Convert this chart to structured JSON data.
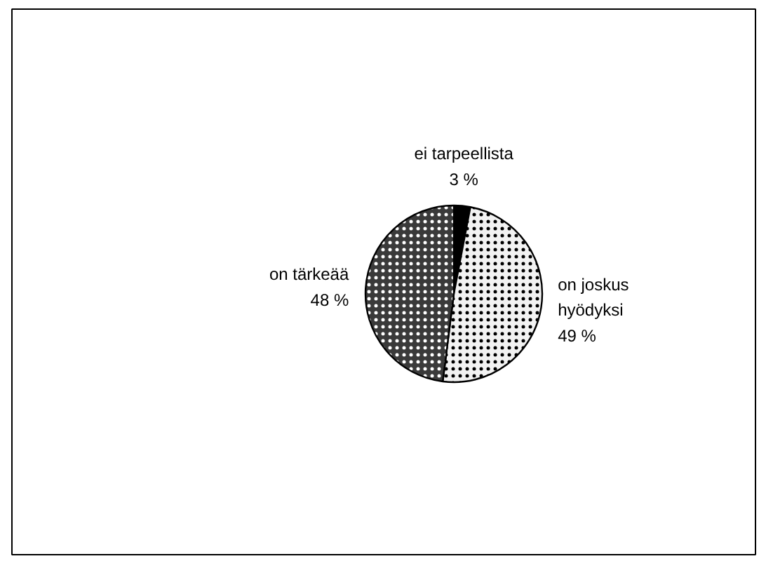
{
  "chart_data": {
    "type": "pie",
    "categories": [
      "ei tarpeellista",
      "on joskus hyödyksi",
      "on tärkeää"
    ],
    "values": [
      3,
      49,
      48
    ],
    "value_labels": [
      "3 %",
      "49 %",
      "48 %"
    ],
    "colors": [
      "#000000",
      "#f2f2f2",
      "#3a3a3a"
    ]
  }
}
